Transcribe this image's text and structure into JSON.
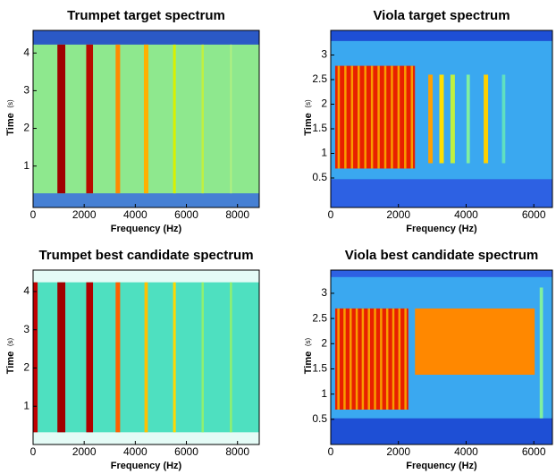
{
  "chart_data": [
    {
      "type": "heatmap",
      "title": "Trumpet target spectrum",
      "xlabel": "Frequency (Hz)",
      "ylabel": "Time",
      "yunit": "(s)",
      "xlim": [
        0,
        8850
      ],
      "xticks": [
        0,
        2000,
        4000,
        6000,
        8000
      ],
      "ylim": [
        -0.1,
        4.6
      ],
      "yticks": [
        1,
        2,
        3,
        4
      ]
    },
    {
      "type": "heatmap",
      "title": "Viola target spectrum",
      "xlabel": "Frequency (Hz)",
      "ylabel": "Time",
      "yunit": "(s)",
      "xlim": [
        0,
        6550
      ],
      "xticks": [
        0,
        2000,
        4000,
        6000
      ],
      "ylim": [
        -0.1,
        3.5
      ],
      "yticks": [
        0.5,
        1,
        1.5,
        2,
        2.5,
        3
      ]
    },
    {
      "type": "heatmap",
      "title": "Trumpet best candidate spectrum",
      "xlabel": "Frequency (Hz)",
      "ylabel": "Time",
      "yunit": "(s)",
      "xlim": [
        0,
        8850
      ],
      "xticks": [
        0,
        2000,
        4000,
        6000,
        8000
      ],
      "ylim": [
        0,
        4.56
      ],
      "yticks": [
        1,
        2,
        3,
        4
      ]
    },
    {
      "type": "heatmap",
      "title": "Viola best candidate spectrum",
      "xlabel": "Frequency (Hz)",
      "ylabel": "Time",
      "yunit": "(s)",
      "xlim": [
        0,
        6550
      ],
      "xticks": [
        0,
        2000,
        4000,
        6000
      ],
      "ylim": [
        0,
        3.46
      ],
      "yticks": [
        0.5,
        1,
        1.5,
        2,
        2.5,
        3
      ]
    }
  ]
}
